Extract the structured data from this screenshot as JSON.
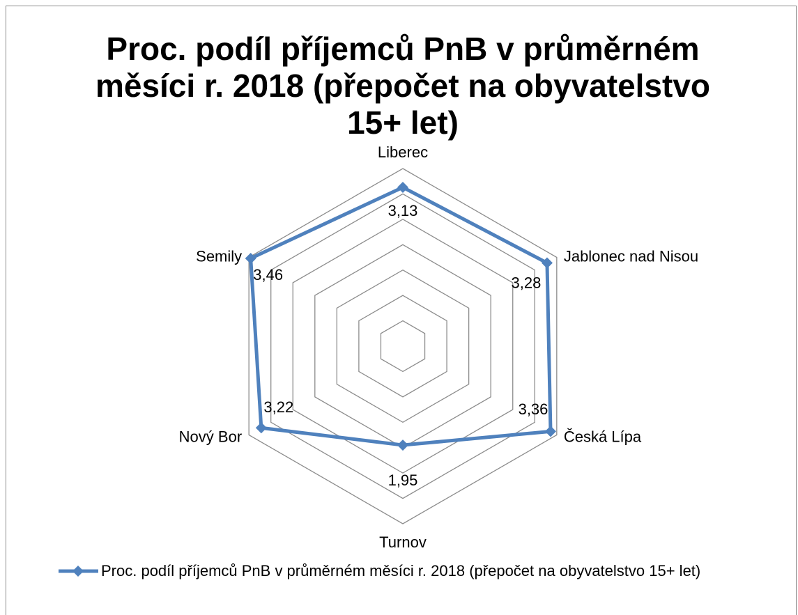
{
  "chart_data": {
    "type": "radar",
    "title": "Proc. podíl příjemců PnB v průměrném měsíci r. 2018 (přepočet na obyvatelstvo 15+ let)",
    "categories": [
      "Liberec",
      "Jablonec nad Nisou",
      "Česká Lípa",
      "Turnov",
      "Nový Bor",
      "Semily"
    ],
    "series": [
      {
        "name": "Proc. podíl příjemců PnB v průměrném měsíci r. 2018 (přepočet na obyvatelstvo 15+ let)",
        "color": "#4f81bd",
        "values": [
          3.13,
          3.28,
          3.36,
          1.95,
          3.22,
          3.46
        ],
        "value_labels": [
          "3,13",
          "3,28",
          "3,36",
          "1,95",
          "3,22",
          "3,46"
        ]
      }
    ],
    "ylim": [
      0,
      3.5
    ],
    "yticks": [
      0,
      0.5,
      1,
      1.5,
      2,
      2.5,
      3,
      3.5
    ],
    "grid": true,
    "legend": "bottom"
  }
}
